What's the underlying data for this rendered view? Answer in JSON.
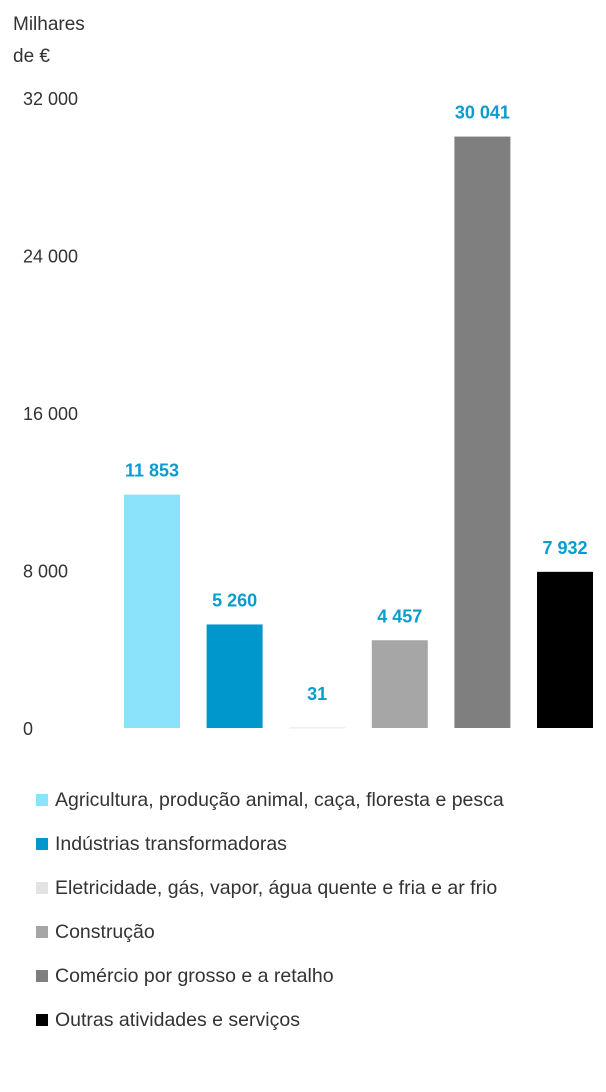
{
  "chart_data": {
    "type": "bar",
    "unit_label": [
      "Milhares",
      "de €"
    ],
    "yticks": [
      0,
      8000,
      16000,
      24000,
      32000
    ],
    "ytick_labels": [
      "0",
      "8 000",
      "16 000",
      "24 000",
      "32 000"
    ],
    "ylim": [
      0,
      32000
    ],
    "categories": [
      "Agricultura, produção animal, caça, floresta e pesca",
      "Indústrias transformadoras",
      "Eletricidade, gás, vapor, água quente e fria e ar frio",
      "Construção",
      "Comércio por grosso e a retalho",
      "Outras atividades e serviços"
    ],
    "values": [
      11853,
      5260,
      31,
      4457,
      30041,
      7932
    ],
    "value_labels": [
      "11 853",
      "5 260",
      "31",
      "4 457",
      "30 041",
      "7 932"
    ],
    "colors": [
      "#8ae3fb",
      "#0098cc",
      "#e3e3e3",
      "#a6a6a6",
      "#7f7f7f",
      "#000000"
    ],
    "value_label_color": "#0a9ccf",
    "legend_position": "bottom",
    "grid": false
  }
}
